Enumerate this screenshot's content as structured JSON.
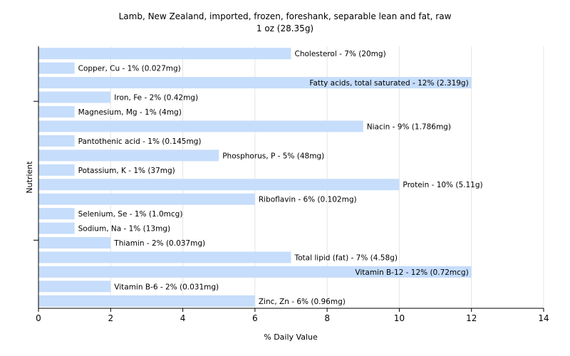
{
  "chart_data": {
    "type": "bar",
    "orientation": "horizontal",
    "title": "Lamb, New Zealand, imported, frozen, foreshank, separable lean and fat, raw",
    "subtitle": "1 oz (28.35g)",
    "xlabel": "% Daily Value",
    "ylabel": "Nutrient",
    "xlim": [
      0,
      14
    ],
    "xticks": [
      0,
      2,
      4,
      6,
      8,
      10,
      12,
      14
    ],
    "grid": true,
    "bar_color": "#c6ddfb",
    "grid_color": "#e4e4e4",
    "categories": [
      "Cholesterol",
      "Copper, Cu",
      "Fatty acids, total saturated",
      "Iron, Fe",
      "Magnesium, Mg",
      "Niacin",
      "Pantothenic acid",
      "Phosphorus, P",
      "Potassium, K",
      "Protein",
      "Riboflavin",
      "Selenium, Se",
      "Sodium, Na",
      "Thiamin",
      "Total lipid (fat)",
      "Vitamin B-12",
      "Vitamin B-6",
      "Zinc, Zn"
    ],
    "values": [
      7,
      1,
      12,
      2,
      1,
      9,
      1,
      5,
      1,
      10,
      6,
      1,
      1,
      2,
      7,
      12,
      2,
      6
    ],
    "labels": [
      "Cholesterol - 7% (20mg)",
      "Copper, Cu - 1% (0.027mg)",
      "Fatty acids, total saturated - 12% (2.319g)",
      "Iron, Fe - 2% (0.42mg)",
      "Magnesium, Mg - 1% (4mg)",
      "Niacin - 9% (1.786mg)",
      "Pantothenic acid - 1% (0.145mg)",
      "Phosphorus, P - 5% (48mg)",
      "Potassium, K - 1% (37mg)",
      "Protein - 10% (5.11g)",
      "Riboflavin - 6% (0.102mg)",
      "Selenium, Se - 1% (1.0mcg)",
      "Sodium, Na - 1% (13mg)",
      "Thiamin - 2% (0.037mg)",
      "Total lipid (fat) - 7% (4.58g)",
      "Vitamin B-12 - 12% (0.72mcg)",
      "Vitamin B-6 - 2% (0.031mg)",
      "Zinc, Zn - 6% (0.96mg)"
    ]
  }
}
